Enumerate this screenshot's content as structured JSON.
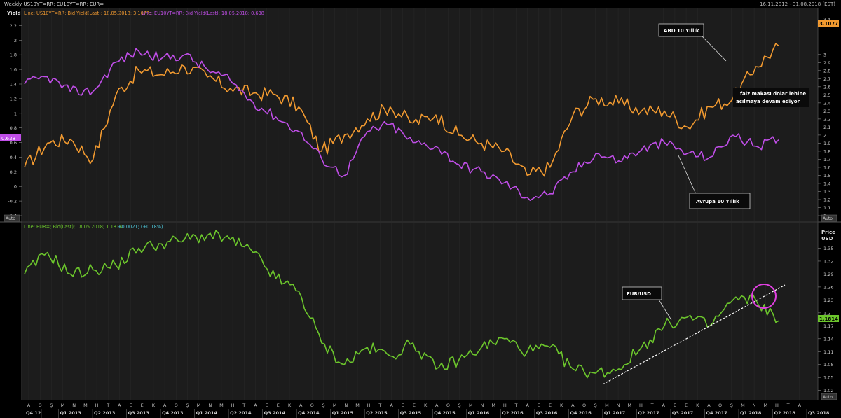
{
  "header": {
    "title": "Weekly US10YT=RR; EU10YT=RR; EUR=",
    "date_range": "16.11.2012 - 31.08.2018 (EST)"
  },
  "colors": {
    "us": "#f29a30",
    "eu": "#c04ee8",
    "eur": "#6cc62c",
    "bg": "#000000",
    "panel_bg": "#1c1c1c"
  },
  "top_panel": {
    "legend_us": "Line; US10YT=RR; Bid Yield(Last); 18.05.2018; 3.1077;",
    "legend_eu": "Line; EU10YT=RR; Bid Yield(Last); 18.05.2018; 0.638",
    "left_axis_title": "Yield",
    "left_ticks": [
      "2.2",
      "2",
      "1.8",
      "1.6",
      "1.4",
      "1.2",
      "1",
      "0.8",
      "0.6",
      "0.4",
      "0.2",
      "0",
      "-0.2",
      "-0.4"
    ],
    "right_ticks": [
      "3",
      "2.9",
      "2.8",
      "2.7",
      "2.6",
      "2.5",
      "2.4",
      "2.3",
      "2.2",
      "2.1",
      "2",
      "1.9",
      "1.8",
      "1.7",
      "1.6",
      "1.5",
      "1.4",
      "1.3",
      "1.2",
      "1.1",
      "1"
    ],
    "right_top_fragment": "3.4",
    "us_last_label": "3.1077",
    "eu_last_label": "0.638",
    "auto_label": "Auto",
    "annotations": {
      "abd": "ABD 10 Yıllık",
      "avrupa": "Avrupa 10 Yıllık",
      "note_line1": "faiz makası dolar lehine",
      "note_line2": "açılmaya devam ediyor"
    }
  },
  "bottom_panel": {
    "legend_prefix": "Line; EUR=; Bid(Last); 18.05.2018; 1.1814;",
    "legend_change": "+0.0021; (+0.18%)",
    "axis_title_1": "Price",
    "axis_title_2": "USD",
    "right_ticks": [
      "1.35",
      "1.32",
      "1.29",
      "1.26",
      "1.23",
      "1.2",
      "1.17",
      "1.14",
      "1.11",
      "1.08",
      "1.05",
      "1.02"
    ],
    "last_label": "1.1814",
    "auto_label": "Auto",
    "annotation": "EUR/USD"
  },
  "x_axis": {
    "months": [
      "A",
      "O",
      "Ş",
      "M",
      "N",
      "M",
      "H",
      "T",
      "A",
      "E",
      "E",
      "K",
      "A",
      "O",
      "Ş",
      "M",
      "N",
      "M",
      "H",
      "T",
      "A",
      "E",
      "E",
      "K",
      "A",
      "O",
      "Ş",
      "M",
      "N",
      "M",
      "H",
      "T",
      "A",
      "E",
      "E",
      "K",
      "A",
      "O",
      "Ş",
      "M",
      "N",
      "M",
      "H",
      "T",
      "A",
      "E",
      "E",
      "K",
      "A",
      "O",
      "Ş",
      "M",
      "N",
      "M",
      "H",
      "T",
      "A",
      "E",
      "E",
      "K",
      "A",
      "O",
      "Ş",
      "M",
      "N",
      "M",
      "H",
      "T",
      "A"
    ],
    "quarters": [
      "Q4 12",
      "Q1 2013",
      "Q2 2013",
      "Q3 2013",
      "Q4 2013",
      "Q1 2014",
      "Q2 2014",
      "Q3 2014",
      "Q4 2014",
      "Q1 2015",
      "Q2 2015",
      "Q3 2015",
      "Q4 2015",
      "Q1 2016",
      "Q2 2016",
      "Q3 2016",
      "Q4 2016",
      "Q1 2017",
      "Q2 2017",
      "Q3 2017",
      "Q4 2017",
      "Q1 2018",
      "Q2 2018",
      "Q3 2018"
    ]
  },
  "chart_data": [
    {
      "type": "line",
      "name": "US10YT=RR / EU10YT=RR yields",
      "x": [
        "2012-11",
        "2013-01",
        "2013-03",
        "2013-05",
        "2013-07",
        "2013-09",
        "2013-11",
        "2014-01",
        "2014-03",
        "2014-05",
        "2014-07",
        "2014-09",
        "2014-11",
        "2015-01",
        "2015-03",
        "2015-05",
        "2015-07",
        "2015-09",
        "2015-11",
        "2016-01",
        "2016-03",
        "2016-05",
        "2016-07",
        "2016-09",
        "2016-11",
        "2017-01",
        "2017-03",
        "2017-05",
        "2017-07",
        "2017-09",
        "2017-11",
        "2018-01",
        "2018-03",
        "2018-05"
      ],
      "series": [
        {
          "name": "US10YT=RR",
          "axis": "right",
          "values": [
            1.6,
            1.9,
            1.95,
            1.7,
            2.5,
            2.8,
            2.75,
            2.85,
            2.72,
            2.58,
            2.52,
            2.5,
            2.35,
            1.8,
            2.0,
            2.2,
            2.35,
            2.15,
            2.25,
            2.0,
            1.9,
            1.8,
            1.5,
            1.6,
            2.25,
            2.45,
            2.4,
            2.3,
            2.3,
            2.1,
            2.35,
            2.45,
            2.85,
            3.1077
          ]
        },
        {
          "name": "EU10YT=RR",
          "axis": "left",
          "values": [
            1.4,
            1.5,
            1.3,
            1.3,
            1.7,
            1.85,
            1.75,
            1.8,
            1.6,
            1.45,
            1.15,
            0.95,
            0.75,
            0.38,
            0.15,
            0.75,
            0.85,
            0.6,
            0.55,
            0.3,
            0.2,
            0.05,
            -0.15,
            -0.1,
            0.2,
            0.45,
            0.35,
            0.5,
            0.6,
            0.45,
            0.4,
            0.7,
            0.55,
            0.638
          ]
        }
      ],
      "left_ylim": [
        -0.4,
        2.3
      ],
      "right_ylim": [
        1.0,
        3.45
      ]
    },
    {
      "type": "line",
      "name": "EUR=",
      "x": [
        "2012-11",
        "2013-01",
        "2013-03",
        "2013-05",
        "2013-07",
        "2013-09",
        "2013-11",
        "2014-01",
        "2014-03",
        "2014-05",
        "2014-07",
        "2014-09",
        "2014-11",
        "2015-01",
        "2015-03",
        "2015-05",
        "2015-07",
        "2015-09",
        "2015-11",
        "2016-01",
        "2016-03",
        "2016-05",
        "2016-07",
        "2016-09",
        "2016-11",
        "2017-01",
        "2017-03",
        "2017-05",
        "2017-07",
        "2017-09",
        "2017-11",
        "2018-01",
        "2018-03",
        "2018-05"
      ],
      "series": [
        {
          "name": "EUR=",
          "values": [
            1.29,
            1.34,
            1.29,
            1.3,
            1.31,
            1.35,
            1.36,
            1.37,
            1.38,
            1.37,
            1.34,
            1.28,
            1.25,
            1.13,
            1.08,
            1.12,
            1.1,
            1.13,
            1.07,
            1.09,
            1.12,
            1.14,
            1.11,
            1.12,
            1.07,
            1.06,
            1.07,
            1.12,
            1.17,
            1.19,
            1.17,
            1.23,
            1.23,
            1.1814
          ]
        }
      ],
      "ylim": [
        1.0,
        1.38
      ]
    }
  ]
}
